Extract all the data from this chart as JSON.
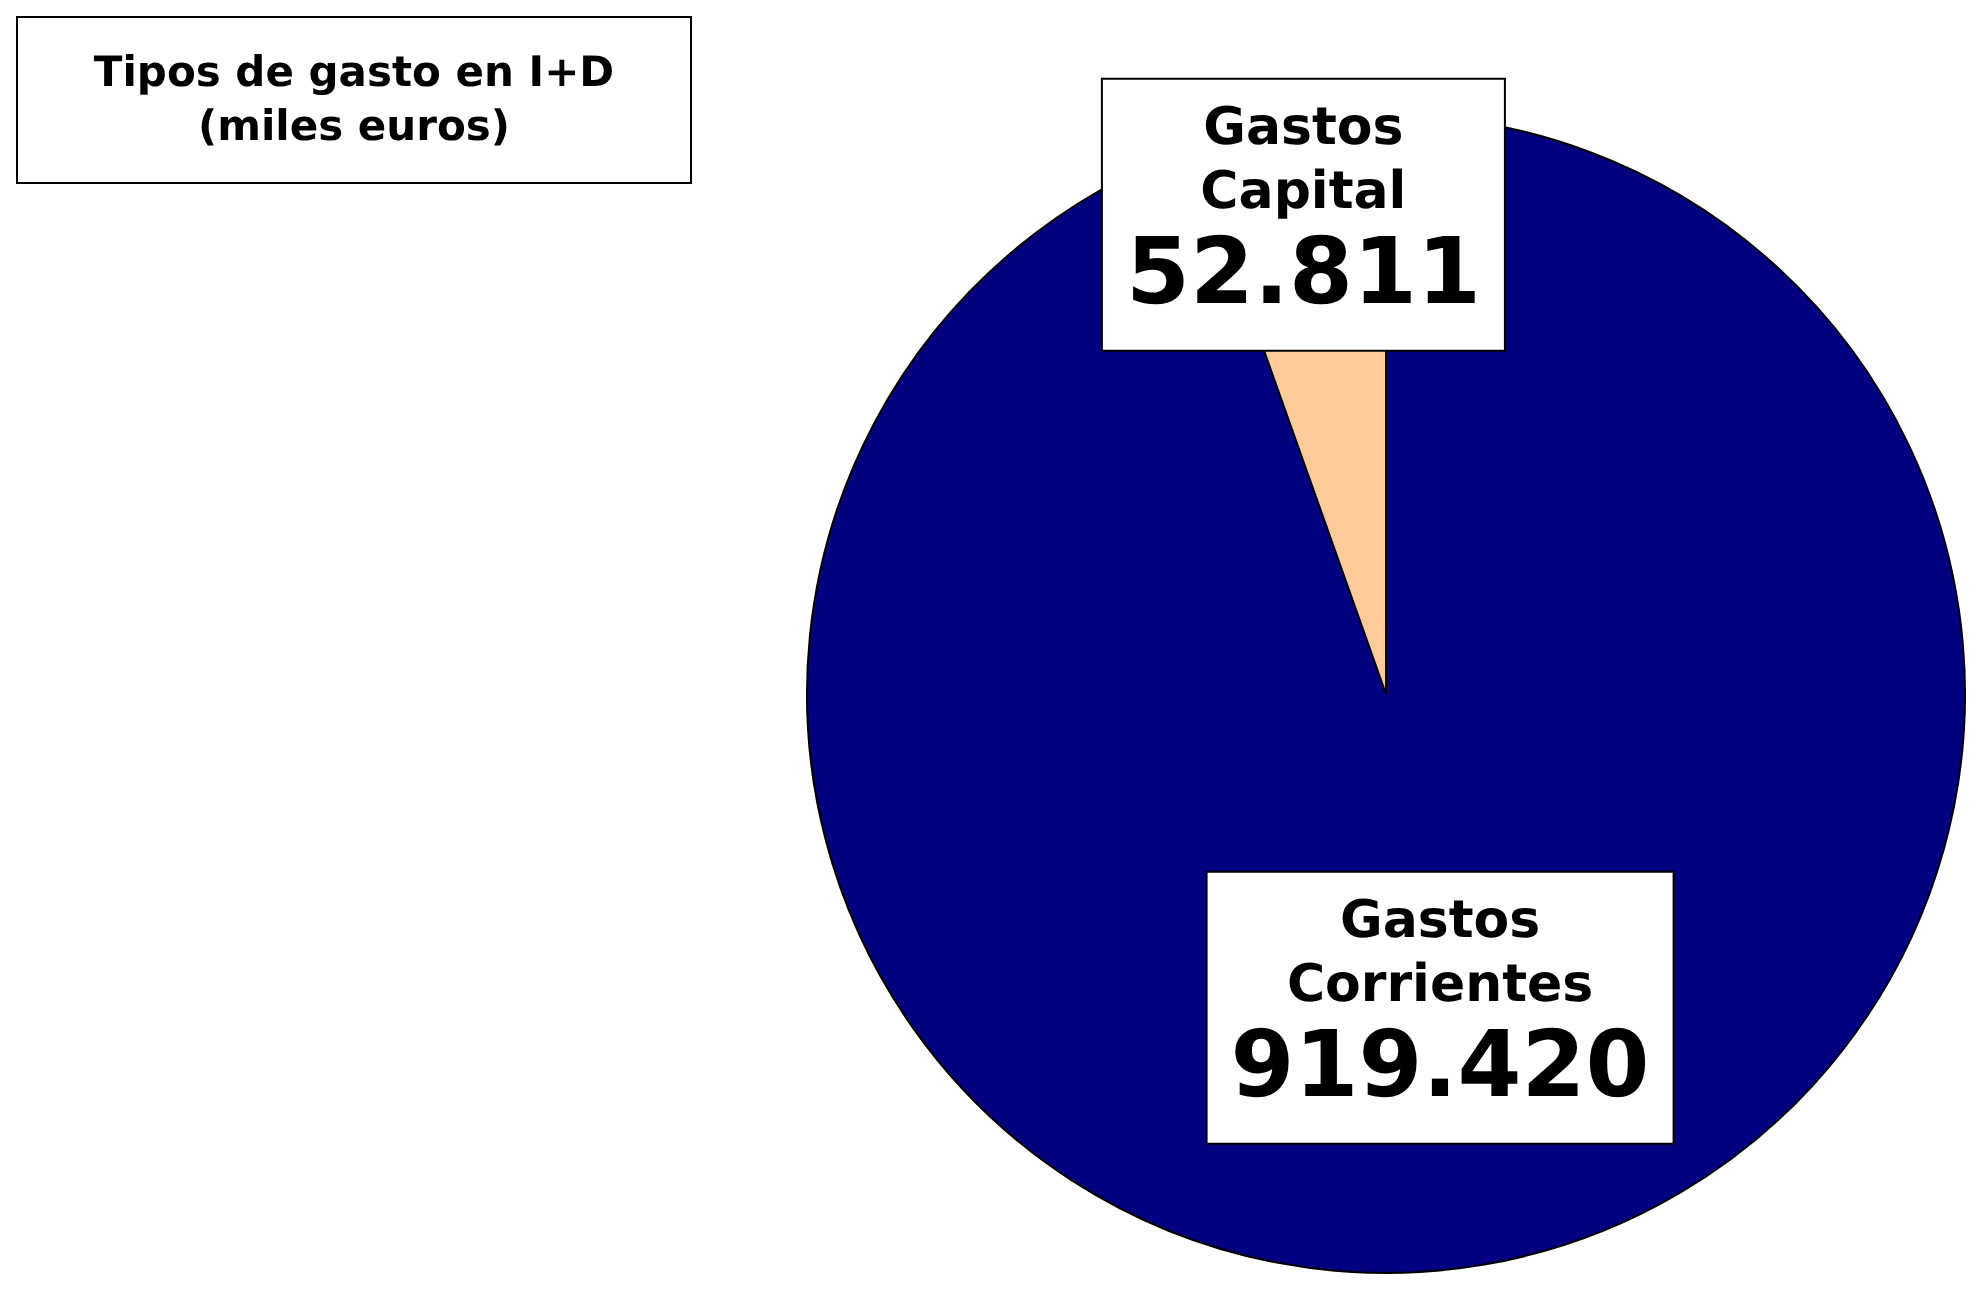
{
  "chart_data": {
    "type": "pie",
    "title": "Tipos de gasto en I+D (miles euros)",
    "categories": [
      "Gastos Corrientes",
      "Gastos Capital"
    ],
    "values": [
      919420,
      52811
    ],
    "colors": [
      "#000080",
      "#ffcc99"
    ],
    "value_labels": [
      "919.420",
      "52.811"
    ]
  }
}
